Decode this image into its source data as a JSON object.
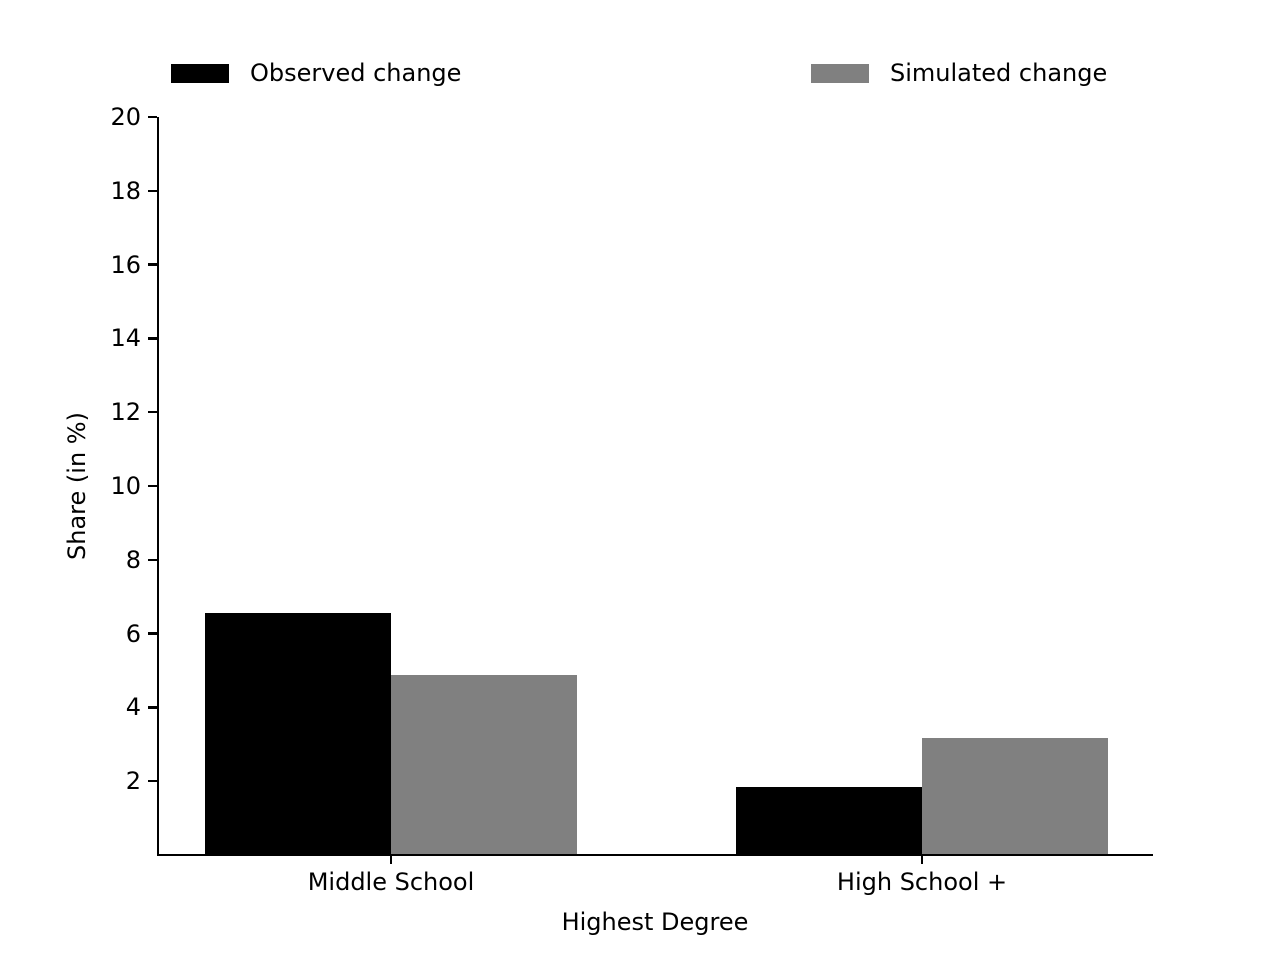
{
  "chart_data": {
    "type": "bar",
    "categories": [
      "Middle School",
      "High School +"
    ],
    "series": [
      {
        "name": "Observed change",
        "color": "#000000",
        "values": [
          6.57,
          1.84
        ]
      },
      {
        "name": "Simulated change",
        "color": "#808080",
        "values": [
          4.88,
          3.18
        ]
      }
    ],
    "xlabel": "Highest Degree",
    "ylabel": "Share (in %)",
    "ylim": [
      0,
      20
    ],
    "yticks": [
      2,
      4,
      6,
      8,
      10,
      12,
      14,
      16,
      18,
      20
    ],
    "grid": false,
    "legend_position": "top",
    "background_color": "#ffffff",
    "axis_color": "#000000"
  }
}
